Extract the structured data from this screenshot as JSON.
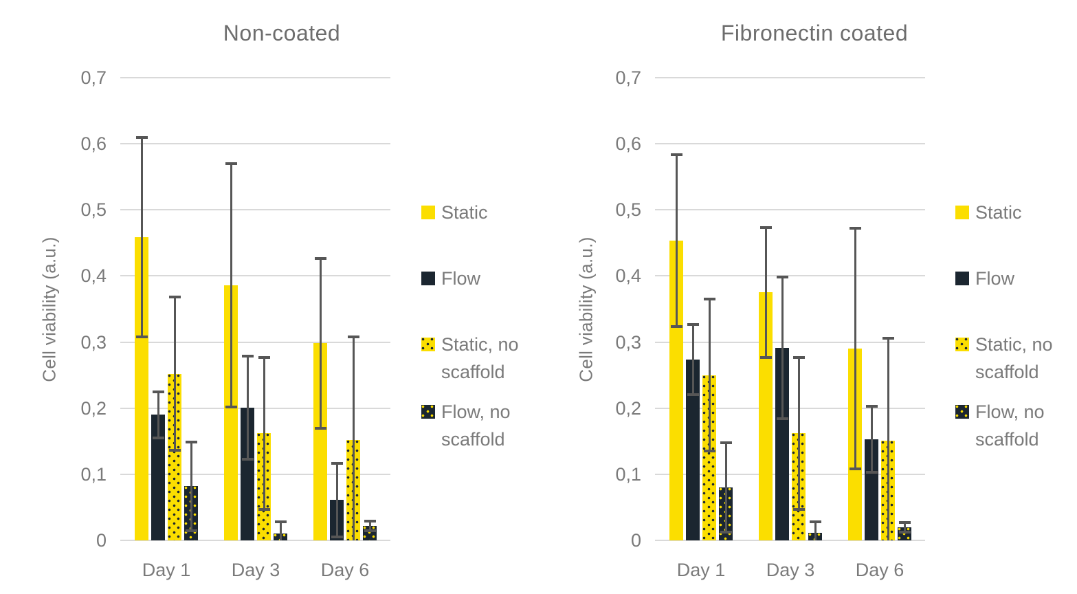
{
  "figure": {
    "background": "#ffffff"
  },
  "colors": {
    "static_yellow": "#fbde00",
    "flow_dark": "#1b2630",
    "error_bar": "#565656",
    "gridline": "#d9d9d9",
    "text_gray": "#7a7a7a",
    "title_gray": "#6d6d6d"
  },
  "legend": {
    "items": [
      {
        "label": "Static",
        "swatch": "static-solid-yellow"
      },
      {
        "label": "Flow",
        "swatch": "flow-solid-dark"
      },
      {
        "label": "Static, no scaffold",
        "swatch": "static-yellow-dotted"
      },
      {
        "label": "Flow, no scaffold",
        "swatch": "flow-dark-dotted"
      }
    ]
  },
  "chart_data": [
    {
      "type": "bar",
      "title": "Non-coated",
      "ylabel": "Cell viability (a.u.)",
      "xlabel": "",
      "ylim": [
        0,
        0.7
      ],
      "ytick_step": 0.1,
      "ytick_labels": [
        "0",
        "0,1",
        "0,2",
        "0,3",
        "0,4",
        "0,5",
        "0,6",
        "0,7"
      ],
      "categories": [
        "Day 1",
        "Day 3",
        "Day 6"
      ],
      "grid": true,
      "legend_position": "right",
      "error_bars": true,
      "series": [
        {
          "name": "Static",
          "values": [
            0.459,
            0.386,
            0.298
          ],
          "errors": [
            0.151,
            0.184,
            0.128
          ]
        },
        {
          "name": "Flow",
          "values": [
            0.19,
            0.201,
            0.061
          ],
          "errors": [
            0.035,
            0.078,
            0.056
          ]
        },
        {
          "name": "Static, no scaffold",
          "values": [
            0.252,
            0.162,
            0.152
          ],
          "errors": [
            0.116,
            0.115,
            0.156
          ]
        },
        {
          "name": "Flow, no scaffold",
          "values": [
            0.082,
            0.01,
            0.022
          ],
          "errors": [
            0.067,
            0.018,
            0.007
          ]
        }
      ]
    },
    {
      "type": "bar",
      "title": "Fibronectin coated",
      "ylabel": "Cell viability (a.u.)",
      "xlabel": "",
      "ylim": [
        0,
        0.7
      ],
      "ytick_step": 0.1,
      "ytick_labels": [
        "0",
        "0,1",
        "0,2",
        "0,3",
        "0,4",
        "0,5",
        "0,6",
        "0,7"
      ],
      "categories": [
        "Day 1",
        "Day 3",
        "Day 6"
      ],
      "grid": true,
      "legend_position": "right",
      "error_bars": true,
      "series": [
        {
          "name": "Static",
          "values": [
            0.453,
            0.375,
            0.29
          ],
          "errors": [
            0.13,
            0.098,
            0.182
          ]
        },
        {
          "name": "Flow",
          "values": [
            0.274,
            0.291,
            0.153
          ],
          "errors": [
            0.053,
            0.107,
            0.05
          ]
        },
        {
          "name": "Static, no scaffold",
          "values": [
            0.25,
            0.162,
            0.151
          ],
          "errors": [
            0.115,
            0.115,
            0.155
          ]
        },
        {
          "name": "Flow, no scaffold",
          "values": [
            0.08,
            0.011,
            0.02
          ],
          "errors": [
            0.068,
            0.017,
            0.007
          ]
        }
      ]
    }
  ]
}
